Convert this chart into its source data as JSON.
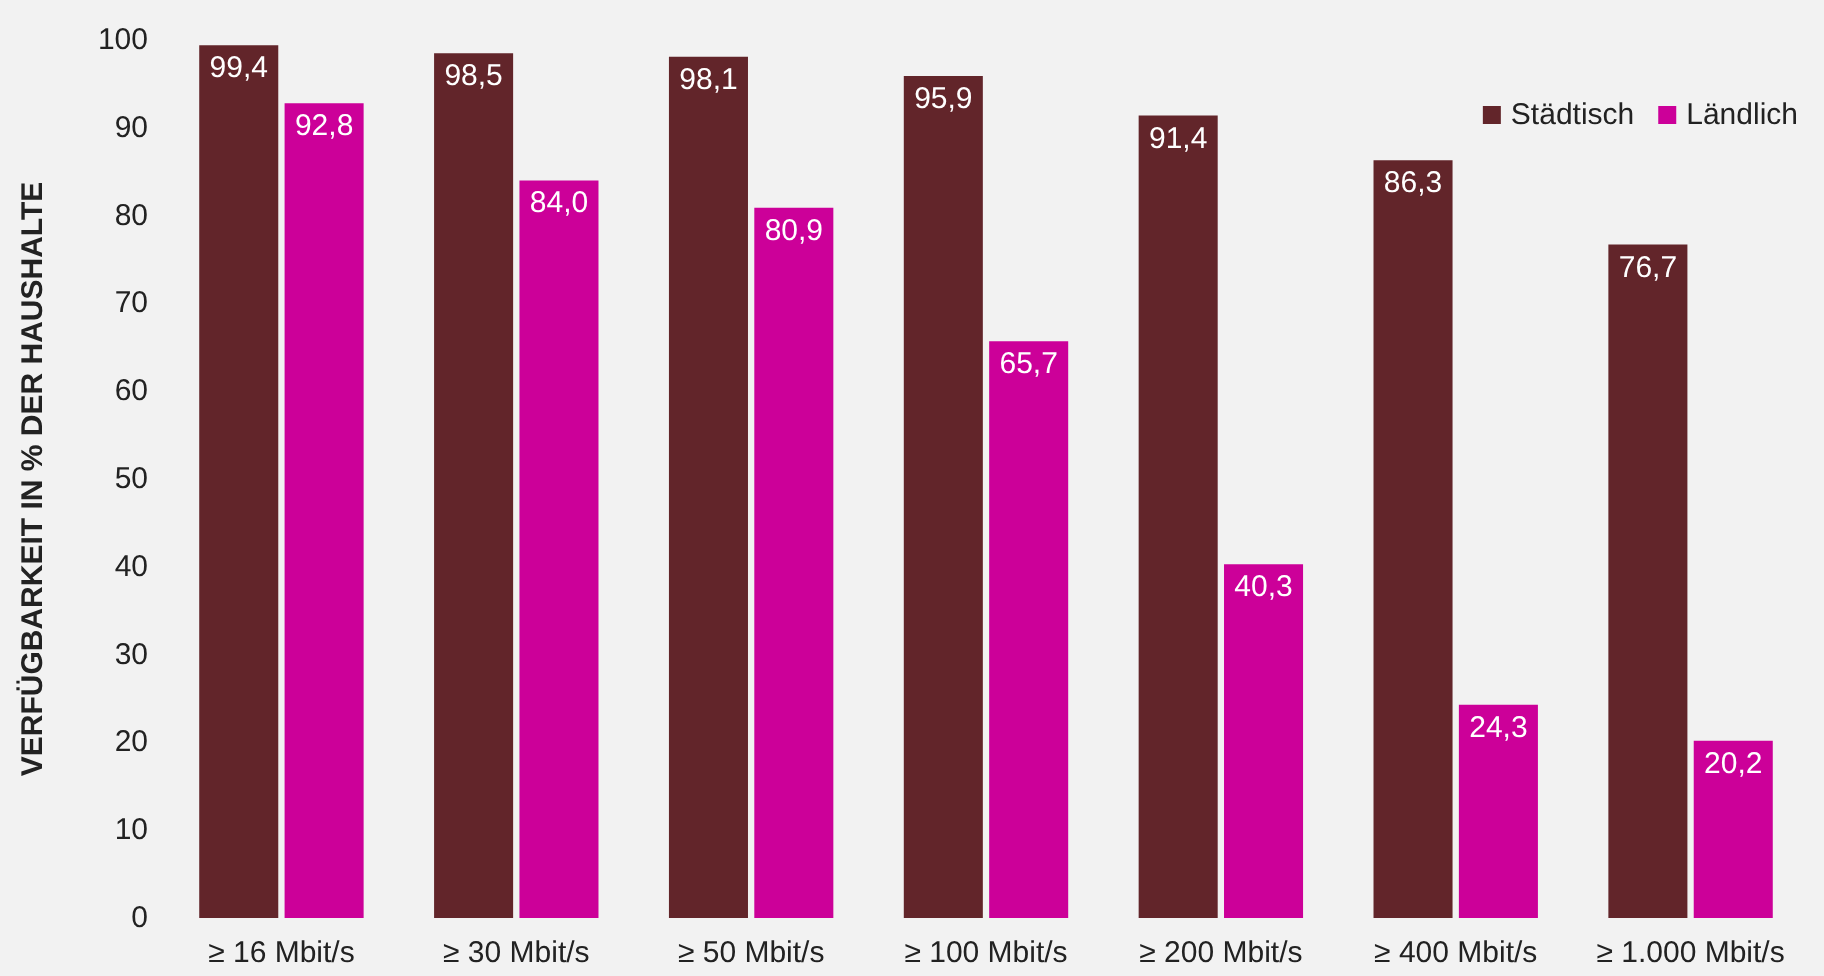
{
  "chart_data": {
    "type": "bar",
    "ylabel": "VERFÜGBARKEIT IN % DER HAUSHALTE",
    "categories": [
      "≥ 16 Mbit/s",
      "≥ 30 Mbit/s",
      "≥ 50 Mbit/s",
      "≥ 100 Mbit/s",
      "≥ 200 Mbit/s",
      "≥ 400 Mbit/s",
      "≥ 1.000 Mbit/s"
    ],
    "series": [
      {
        "name": "Städtisch",
        "color": "#62252a",
        "values": [
          99.4,
          98.5,
          98.1,
          95.9,
          91.4,
          86.3,
          76.7
        ],
        "value_labels": [
          "99,4",
          "98,5",
          "98,1",
          "95,9",
          "91,4",
          "86,3",
          "76,7"
        ]
      },
      {
        "name": "Ländlich",
        "color": "#cc0099",
        "values": [
          92.8,
          84.0,
          80.9,
          65.7,
          40.3,
          24.3,
          20.2
        ],
        "value_labels": [
          "92,8",
          "84,0",
          "80,9",
          "65,7",
          "40,3",
          "24,3",
          "20,2"
        ]
      }
    ],
    "ylim": [
      0,
      100
    ],
    "yticks": [
      0,
      10,
      20,
      30,
      40,
      50,
      60,
      70,
      80,
      90,
      100
    ],
    "grid": false,
    "legend": "top right"
  }
}
